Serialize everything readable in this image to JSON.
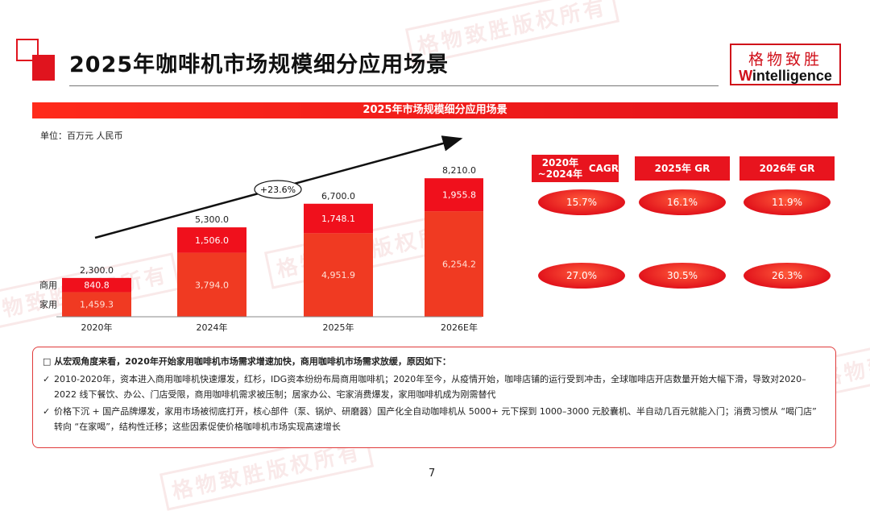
{
  "header": {
    "title": "2025年咖啡机市场规模细分应用场景",
    "logo_cn": "格物致胜",
    "logo_en_prefix": "W",
    "logo_en_rest": "intelligence"
  },
  "watermark": "格物致胜版权所有",
  "section_title": "2025年市场规模细分应用场景",
  "unit_label": "单位：百万元 人民币",
  "chart_data": {
    "type": "bar",
    "stacked": true,
    "categories": [
      "2020年",
      "2024年",
      "2025年",
      "2026E年"
    ],
    "series": [
      {
        "name": "家用",
        "values": [
          1459.3,
          3794.0,
          4951.9,
          6254.2
        ],
        "labels": [
          "1,459.3",
          "3,794.0",
          "4,951.9",
          "6,254.2"
        ],
        "color": "#f03a22"
      },
      {
        "name": "商用",
        "values": [
          840.8,
          1506.0,
          1748.1,
          1955.8
        ],
        "labels": [
          "840.8",
          "1,506.0",
          "1,748.1",
          "1,955.8"
        ],
        "color": "#f0101c"
      }
    ],
    "totals": [
      2300.0,
      5300.0,
      6700.0,
      8210.0
    ],
    "total_labels": [
      "2,300.0",
      "5,300.0",
      "6,700.0",
      "8,210.0"
    ],
    "growth_annotation": "+23.6%",
    "ylim": [
      0,
      8600
    ],
    "grid": false
  },
  "metrics": {
    "headers": [
      "2020年~2024年\nCAGR",
      "2025年 GR",
      "2026年 GR"
    ],
    "rows": [
      {
        "series": "商用",
        "values": [
          "15.7%",
          "16.1%",
          "11.9%"
        ]
      },
      {
        "series": "家用",
        "values": [
          "27.0%",
          "30.5%",
          "26.3%"
        ]
      }
    ]
  },
  "notes": {
    "heading": "从宏观角度来看，2020年开始家用咖啡机市场需求增速加快，商用咖啡机市场需求放缓，原因如下：",
    "items": [
      "2010-2020年，资本进入商用咖啡机快速爆发，红杉，IDG资本纷纷布局商用咖啡机；2020年至今，从疫情开始，咖啡店铺的运行受到冲击，全球咖啡店开店数量开始大幅下滑，导致对2020–2022 线下餐饮、办公、门店受限，商用咖啡机需求被压制；居家办公、宅家消费爆发，家用咖啡机成为刚需替代",
      "价格下沉 + 国产品牌爆发，家用市场被彻底打开，核心部件（泵、锅炉、研磨器）国产化全自动咖啡机从 5000+ 元下探到 1000–3000 元胶囊机、半自动几百元就能入门；消费习惯从 “喝门店” 转向 “在家喝”，结构性迁移；这些因素促使价格咖啡机市场实现高速增长"
    ],
    "check": "✓",
    "square": "□"
  },
  "page_number": "7"
}
